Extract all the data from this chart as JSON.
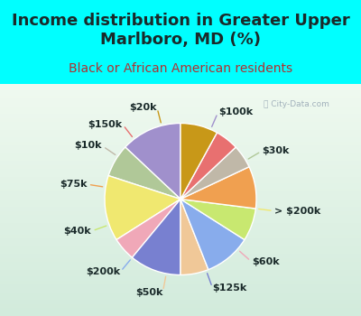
{
  "title": "Income distribution in Greater Upper\nMarlboro, MD (%)",
  "subtitle": "Black or African American residents",
  "background_cyan": "#00FFFF",
  "labels": [
    "$100k",
    "$30k",
    "> $200k",
    "$60k",
    "$125k",
    "$50k",
    "$200k",
    "$40k",
    "$75k",
    "$10k",
    "$150k",
    "$20k"
  ],
  "values": [
    13,
    7,
    14,
    5,
    11,
    6,
    10,
    7,
    9,
    5,
    5,
    8
  ],
  "colors": [
    "#a090cc",
    "#b0c898",
    "#f0e870",
    "#f0a8b8",
    "#7880d0",
    "#f0c898",
    "#88acec",
    "#c8e870",
    "#f0a050",
    "#c0b8a8",
    "#e87070",
    "#c89818"
  ],
  "startangle": 90,
  "title_fontsize": 13,
  "subtitle_fontsize": 10,
  "label_fontsize": 8,
  "title_color": "#1a2a2a",
  "subtitle_color": "#b03030"
}
